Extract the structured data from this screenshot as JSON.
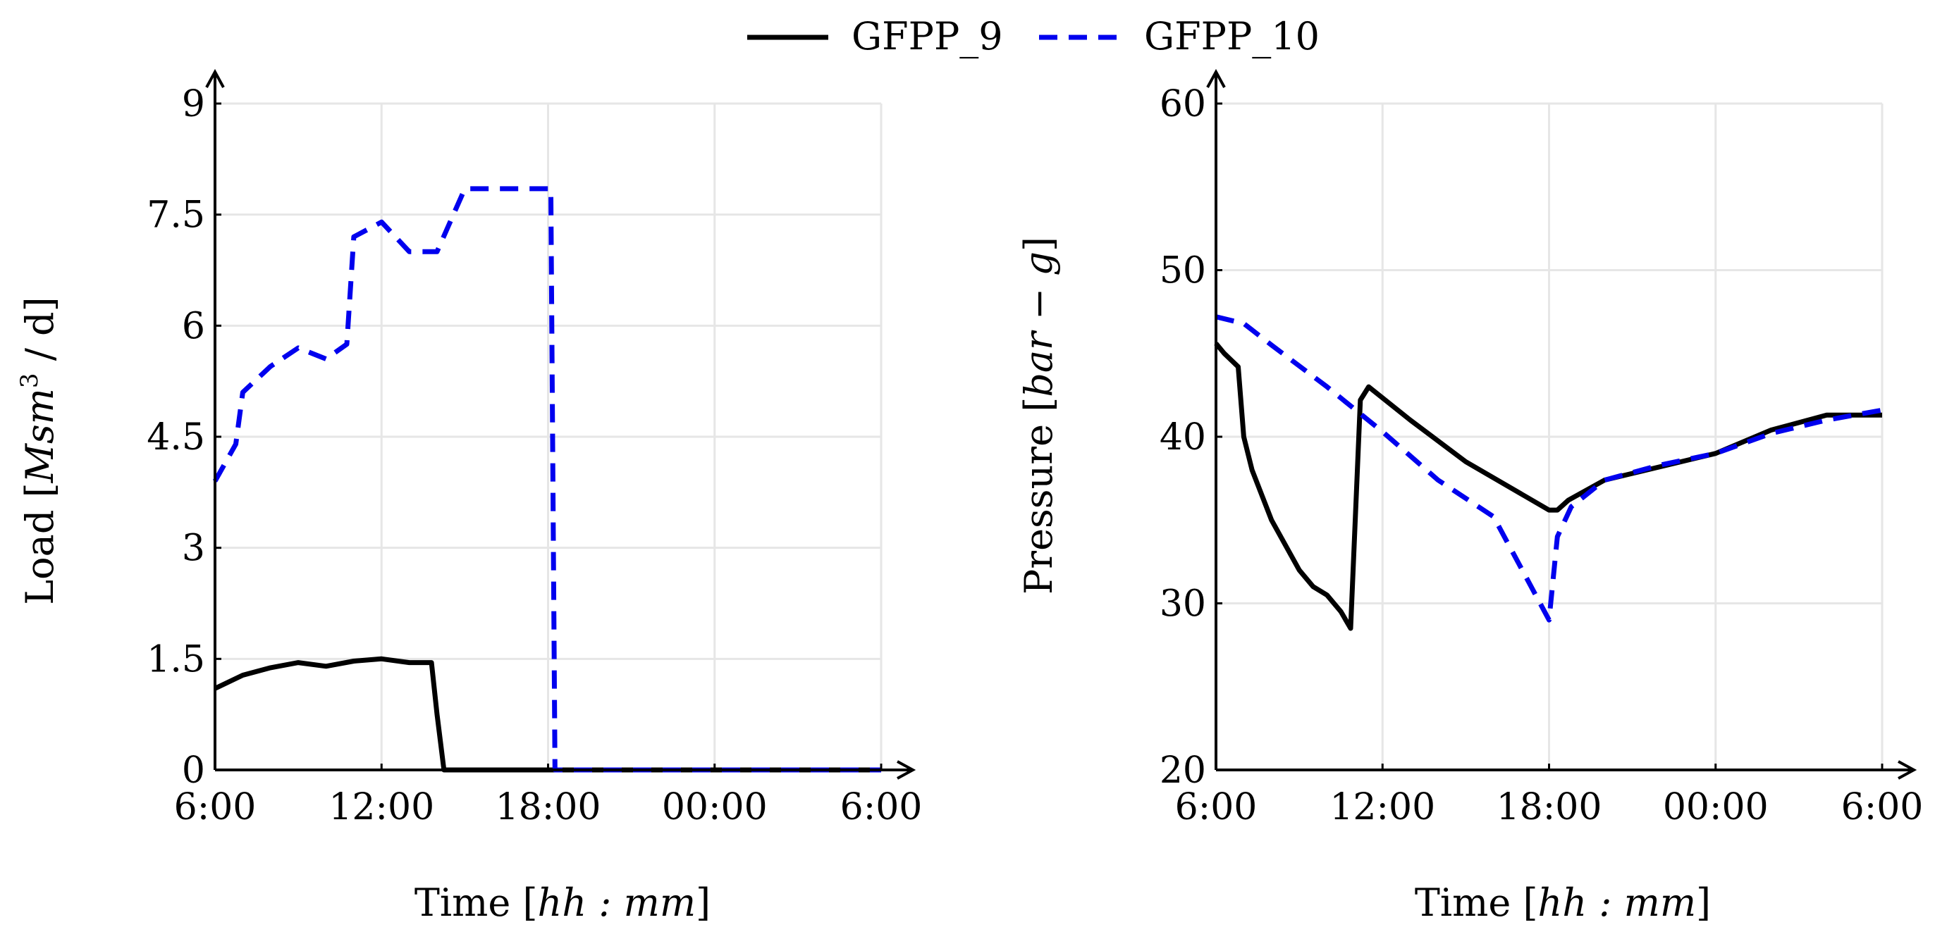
{
  "legend": {
    "entries": [
      {
        "name": "GFPP_9",
        "color": "#000000",
        "dash": "solid"
      },
      {
        "name": "GFPP_10",
        "color": "#0000ee",
        "dash": "dashed"
      }
    ]
  },
  "chart_data": [
    {
      "type": "line",
      "ylabel_parts": {
        "prefix": "Load [",
        "unit": "Msm",
        "sup": "3",
        "suffix": " / d]"
      },
      "xlabel_parts": {
        "prefix": "Time [",
        "unit": "hh : mm",
        "suffix": "]"
      },
      "xlim": [
        0,
        24
      ],
      "ylim": [
        0,
        9
      ],
      "x_ticks": [
        0,
        6,
        12,
        18,
        24
      ],
      "x_tick_labels": [
        "6:00",
        "12:00",
        "18:00",
        "00:00",
        "6:00"
      ],
      "y_ticks": [
        0,
        1.5,
        3,
        4.5,
        6,
        7.5,
        9
      ],
      "y_tick_labels": [
        "0",
        "1.5",
        "3",
        "4.5",
        "6",
        "7.5",
        "9"
      ],
      "series": [
        {
          "name": "GFPP_9",
          "color": "#000000",
          "dash": "solid",
          "x": [
            0,
            1,
            2,
            3,
            4,
            5,
            6,
            7,
            7.8,
            8,
            8.25,
            12,
            18,
            24
          ],
          "y": [
            1.1,
            1.28,
            1.38,
            1.45,
            1.4,
            1.47,
            1.5,
            1.45,
            1.45,
            0.75,
            0,
            0,
            0,
            0
          ]
        },
        {
          "name": "GFPP_10",
          "color": "#0000ee",
          "dash": "dashed",
          "x": [
            0,
            0.75,
            1,
            2,
            3,
            4,
            4.75,
            5,
            6,
            7,
            8,
            9,
            12,
            12.1,
            12.25,
            18,
            24
          ],
          "y": [
            3.9,
            4.4,
            5.1,
            5.45,
            5.7,
            5.55,
            5.75,
            7.2,
            7.4,
            7.0,
            7.0,
            7.85,
            7.85,
            7.85,
            0,
            0,
            0
          ]
        }
      ]
    },
    {
      "type": "line",
      "ylabel_parts": {
        "prefix": "Pressure [",
        "unit": "bar − g",
        "suffix": "]"
      },
      "xlabel_parts": {
        "prefix": "Time [",
        "unit": "hh : mm",
        "suffix": "]"
      },
      "xlim": [
        0,
        24
      ],
      "ylim": [
        20,
        60
      ],
      "x_ticks": [
        0,
        6,
        12,
        18,
        24
      ],
      "x_tick_labels": [
        "6:00",
        "12:00",
        "18:00",
        "00:00",
        "6:00"
      ],
      "y_ticks": [
        20,
        30,
        40,
        50,
        60
      ],
      "y_tick_labels": [
        "20",
        "30",
        "40",
        "50",
        "60"
      ],
      "series": [
        {
          "name": "GFPP_9",
          "color": "#000000",
          "dash": "solid",
          "x": [
            0,
            0.3,
            0.8,
            1,
            1.3,
            2,
            3,
            3.5,
            4,
            4.5,
            4.85,
            5.2,
            5.5,
            7,
            9,
            12,
            12.3,
            12.7,
            14,
            16,
            18,
            20,
            22,
            24
          ],
          "y": [
            45.6,
            45.0,
            44.2,
            40.0,
            38.0,
            35.0,
            32.0,
            31.0,
            30.5,
            29.5,
            28.5,
            42.2,
            43.0,
            41.0,
            38.5,
            35.6,
            35.6,
            36.2,
            37.4,
            38.2,
            39.0,
            40.4,
            41.3,
            41.3
          ]
        },
        {
          "name": "GFPP_10",
          "color": "#0000ee",
          "dash": "dashed",
          "x": [
            0,
            1,
            2,
            4,
            6,
            8,
            10,
            12,
            12.3,
            12.8,
            14,
            16,
            18,
            20,
            22,
            24
          ],
          "y": [
            47.2,
            46.8,
            45.5,
            43.0,
            40.3,
            37.4,
            35.2,
            29.0,
            34.0,
            35.8,
            37.4,
            38.3,
            39.0,
            40.2,
            41.0,
            41.6
          ]
        }
      ]
    }
  ]
}
